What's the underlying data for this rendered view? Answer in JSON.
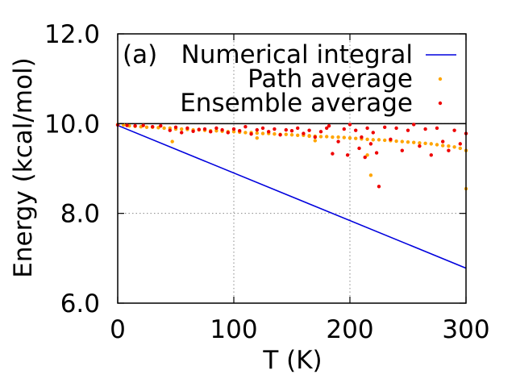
{
  "chart_data": {
    "type": "scatter",
    "panel_label": "(a)",
    "xlabel": "T (K)",
    "ylabel": "Energy (kcal/mol)",
    "xlim": [
      0,
      300
    ],
    "ylim": [
      6.0,
      12.0
    ],
    "x_ticks": [
      0,
      100,
      200,
      300
    ],
    "y_ticks": [
      6.0,
      8.0,
      10.0,
      12.0
    ],
    "x_tick_labels": [
      "0",
      "100",
      "200",
      "300"
    ],
    "y_tick_labels": [
      "6.0",
      "8.0",
      "10.0",
      "12.0"
    ],
    "grid": true,
    "reference_line": 10.0,
    "legend_position": "top-right",
    "series": [
      {
        "name": "Numerical integral",
        "style": "line",
        "color": "#0000dd",
        "x": [
          0,
          300
        ],
        "y": [
          9.96,
          6.78
        ]
      },
      {
        "name": "Path average",
        "style": "points",
        "color": "#ffa500",
        "x": [
          0,
          5,
          10,
          15,
          20,
          25,
          30,
          35,
          40,
          45,
          50,
          55,
          60,
          65,
          70,
          75,
          80,
          85,
          90,
          95,
          100,
          105,
          110,
          115,
          120,
          125,
          130,
          135,
          140,
          145,
          150,
          155,
          160,
          165,
          170,
          175,
          180,
          185,
          190,
          195,
          200,
          205,
          210,
          215,
          220,
          225,
          230,
          235,
          240,
          245,
          250,
          255,
          260,
          265,
          270,
          275,
          280,
          285,
          290,
          295,
          300,
          47,
          120,
          165,
          170,
          215,
          218,
          300
        ],
        "y": [
          9.98,
          9.97,
          9.95,
          9.94,
          9.93,
          9.92,
          9.92,
          9.91,
          9.9,
          9.9,
          9.88,
          9.88,
          9.87,
          9.86,
          9.86,
          9.85,
          9.84,
          9.84,
          9.83,
          9.82,
          9.82,
          9.81,
          9.8,
          9.8,
          9.79,
          9.78,
          9.78,
          9.77,
          9.76,
          9.76,
          9.75,
          9.74,
          9.74,
          9.73,
          9.72,
          9.71,
          9.71,
          9.7,
          9.7,
          9.69,
          9.68,
          9.67,
          9.66,
          9.65,
          9.64,
          9.64,
          9.63,
          9.62,
          9.61,
          9.6,
          9.59,
          9.58,
          9.57,
          9.56,
          9.55,
          9.53,
          9.51,
          9.5,
          9.48,
          9.45,
          9.4,
          9.6,
          9.68,
          9.72,
          9.62,
          9.3,
          8.85,
          8.55
        ]
      },
      {
        "name": "Ensemble average",
        "style": "points",
        "color": "#ee0000",
        "x": [
          0,
          8,
          15,
          22,
          30,
          37,
          45,
          50,
          55,
          60,
          65,
          70,
          75,
          80,
          85,
          90,
          95,
          100,
          105,
          110,
          115,
          120,
          125,
          130,
          135,
          140,
          145,
          150,
          155,
          160,
          165,
          170,
          175,
          180,
          182,
          185,
          190,
          195,
          198,
          200,
          205,
          208,
          210,
          213,
          215,
          218,
          220,
          223,
          225,
          230,
          235,
          240,
          245,
          250,
          255,
          260,
          265,
          270,
          275,
          280,
          285,
          290,
          295,
          300
        ],
        "y": [
          9.97,
          9.96,
          9.95,
          9.96,
          9.93,
          9.95,
          9.85,
          9.92,
          9.8,
          9.9,
          9.83,
          9.87,
          9.88,
          9.82,
          9.9,
          9.86,
          9.8,
          9.88,
          9.84,
          9.93,
          9.77,
          9.86,
          9.9,
          9.82,
          9.88,
          9.75,
          9.86,
          9.84,
          9.9,
          9.78,
          9.85,
          9.7,
          9.82,
          9.9,
          9.95,
          9.33,
          9.6,
          9.88,
          9.3,
          9.98,
          9.85,
          9.45,
          9.7,
          9.25,
          9.9,
          9.55,
          9.8,
          9.35,
          8.6,
          9.92,
          9.65,
          9.9,
          9.4,
          9.85,
          9.98,
          9.5,
          9.88,
          9.3,
          9.9,
          9.6,
          9.4,
          9.85,
          9.55,
          9.78
        ]
      }
    ]
  }
}
